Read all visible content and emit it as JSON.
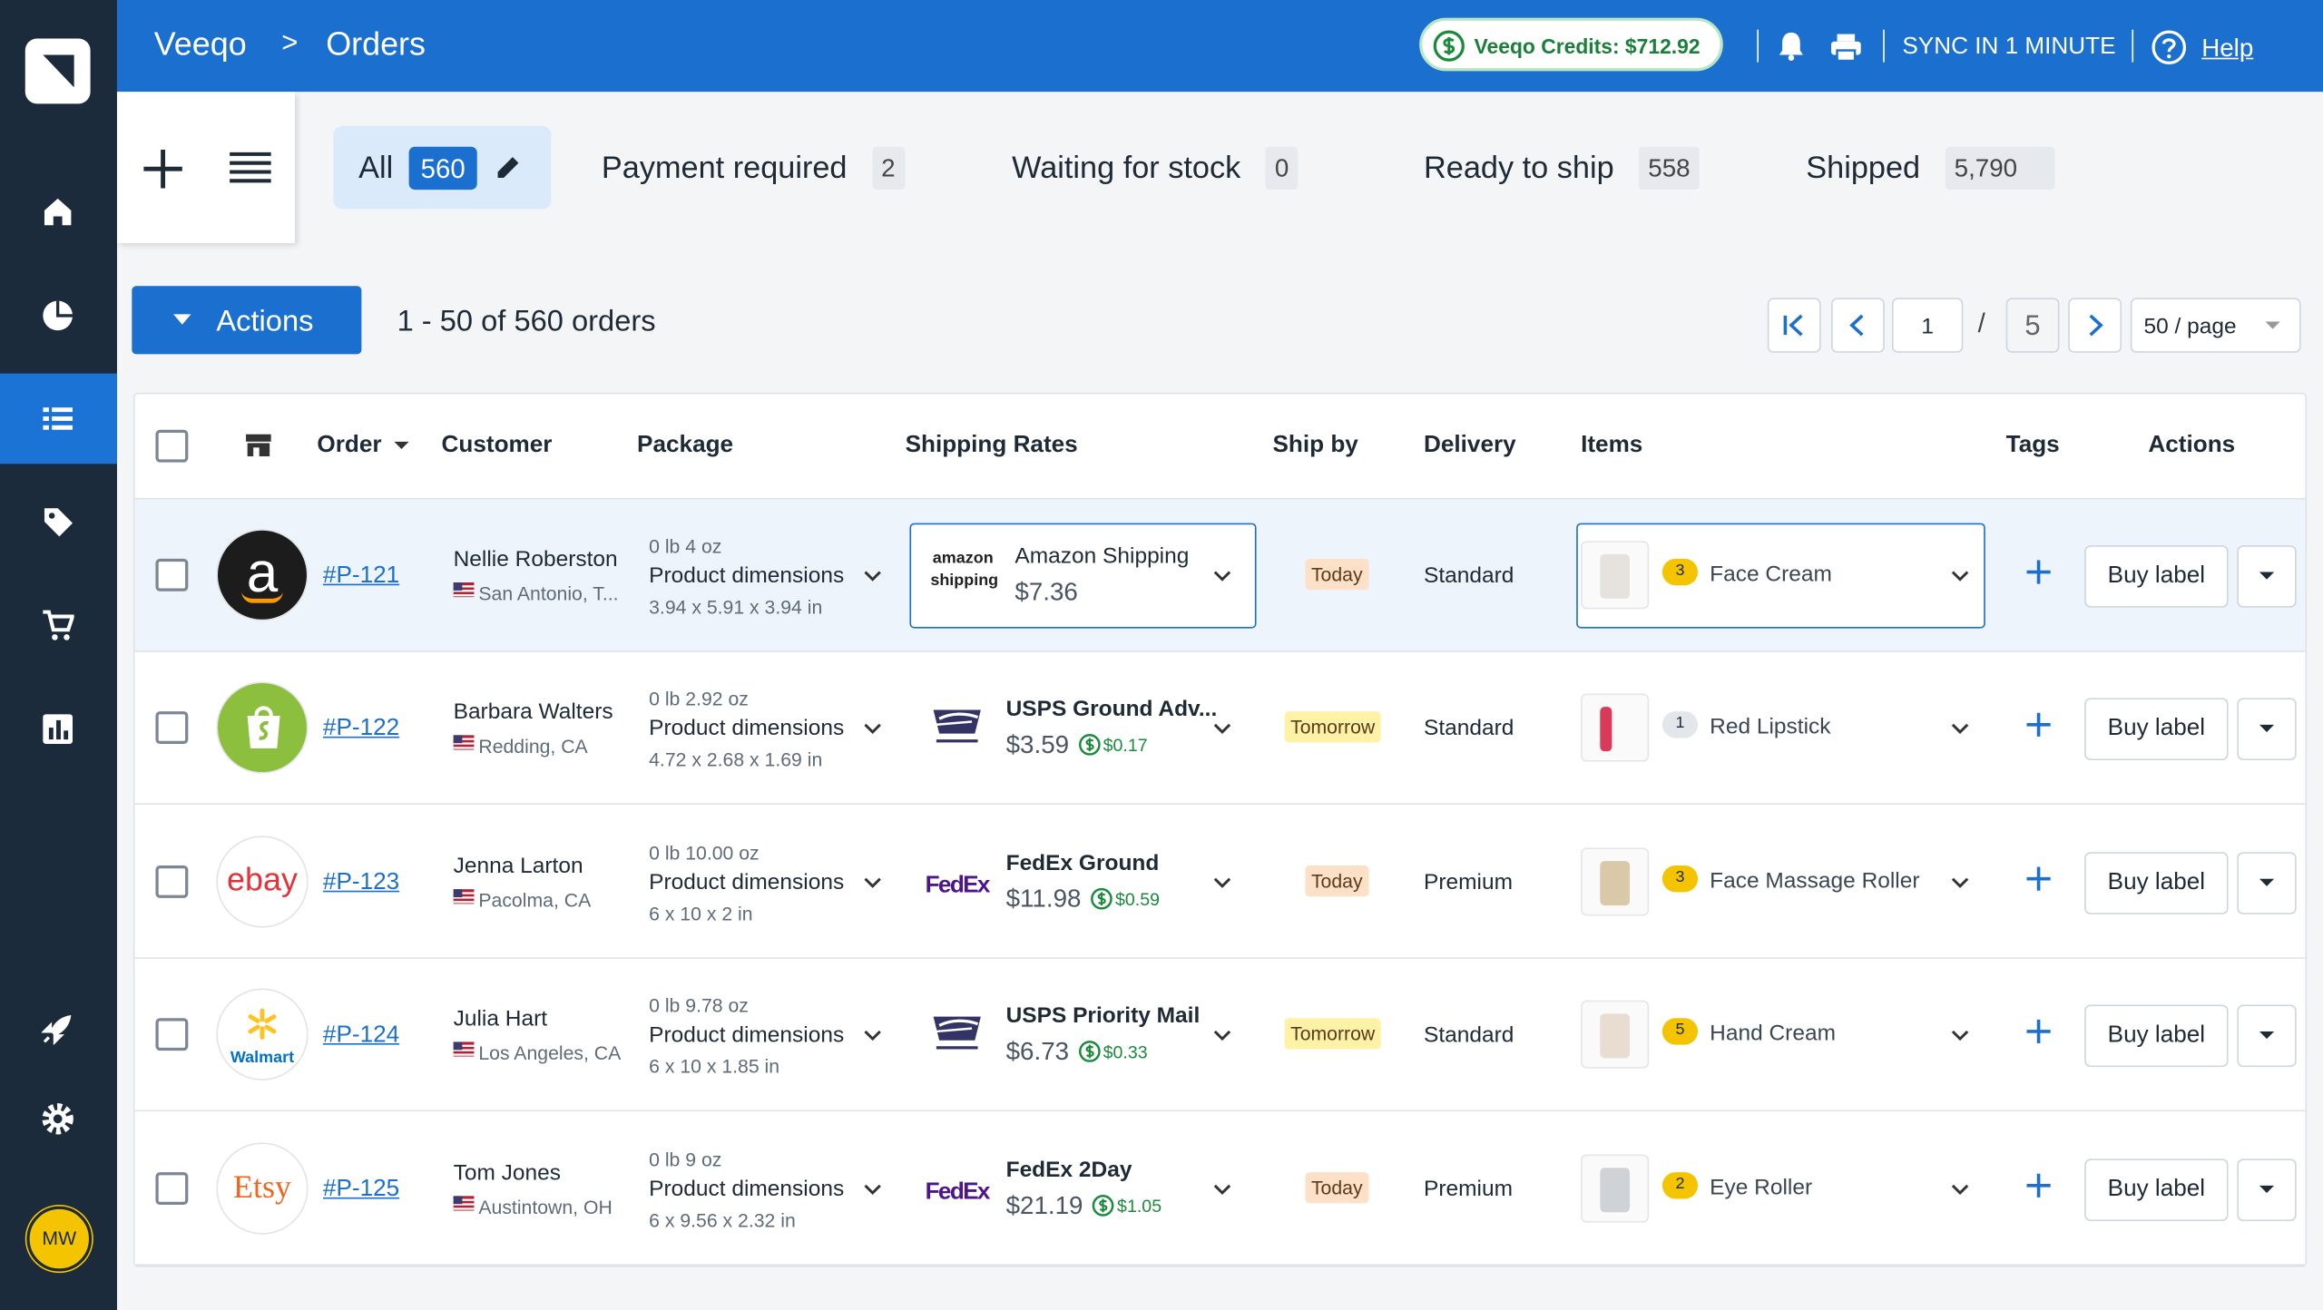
{
  "header": {
    "brand": "Veeqo",
    "separator": ">",
    "page": "Orders",
    "credits": "Veeqo Credits: $712.92",
    "sync": "SYNC IN 1 MINUTE",
    "help": "Help"
  },
  "sidebar": {
    "avatar": "MW"
  },
  "tabs": [
    {
      "label": "All",
      "count": "560"
    },
    {
      "label": "Payment required",
      "count": "2"
    },
    {
      "label": "Waiting for stock",
      "count": "0"
    },
    {
      "label": "Ready to ship",
      "count": "558"
    },
    {
      "label": "Shipped",
      "count": "5,790"
    }
  ],
  "toolbar": {
    "actions": "Actions",
    "summary": "1 - 50 of 560 orders",
    "page": "1",
    "page_separator": "/",
    "pages": "5",
    "per_page": "50 / page"
  },
  "table": {
    "columns": [
      "Order",
      "Customer",
      "Package",
      "Shipping Rates",
      "Ship by",
      "Delivery",
      "Items",
      "Tags",
      "Actions"
    ],
    "rows": [
      {
        "selected": true,
        "channel_logo": "a",
        "channel_bg": "#1c1c1c",
        "channel_fg": "#ffffff",
        "order": "#P-121",
        "customer": "Nellie Roberston",
        "location": "San Antonio, T...",
        "weight": "0 lb 4 oz",
        "package": "Product dimensions",
        "dimensions": "3.94 x 5.91 x 3.94 in",
        "carrier_logo": "amazon shipping",
        "carrier_color": "#222222",
        "service": "Amazon Shipping",
        "rate": "$7.36",
        "ship_by": "Today",
        "ship_by_color": "#fde0c8",
        "delivery": "Standard",
        "quantity": "3",
        "quantity_color": "#f5c400",
        "item": "Face Cream",
        "button": "Buy label"
      },
      {
        "selected": false,
        "channel_bg": "#8dbf3f",
        "channel_fg": "#ffffff",
        "order": "#P-122",
        "customer": "Barbara Walters",
        "location": "Redding, CA",
        "weight": "0 lb 2.92 oz",
        "package": "Product dimensions",
        "dimensions": "4.72 x 2.68 x 1.69 in",
        "service": "USPS Ground Adv...",
        "rate": "$3.59",
        "credit": "$0.17",
        "ship_by": "Tomorrow",
        "ship_by_color": "#fff1a6",
        "delivery": "Standard",
        "quantity": "1",
        "quantity_color": "#e3e6ea",
        "item": "Red Lipstick",
        "button": "Buy label"
      },
      {
        "selected": false,
        "channel_logo": "ebay",
        "channel_bg": "#ffffff",
        "channel_fg": "#e53238",
        "order": "#P-123",
        "customer": "Jenna Larton",
        "location": "Pacolma, CA",
        "weight": "0 lb 10.00 oz",
        "package": "Product dimensions",
        "dimensions": "6 x 10 x 2 in",
        "carrier_logo": "FedEx",
        "carrier_color": "#4d148c",
        "service": "FedEx Ground",
        "rate": "$11.98",
        "credit": "$0.59",
        "ship_by": "Today",
        "ship_by_color": "#fde0c8",
        "delivery": "Premium",
        "quantity": "3",
        "quantity_color": "#f5c400",
        "item": "Face Massage Roller",
        "button": "Buy label"
      },
      {
        "selected": false,
        "channel_logo": "Walmart",
        "channel_bg": "#ffffff",
        "channel_fg": "#0071ce",
        "order": "#P-124",
        "customer": "Julia Hart",
        "location": "Los Angeles, CA",
        "weight": "0 lb 9.78 oz",
        "package": "Product dimensions",
        "dimensions": "6 x 10 x 1.85 in",
        "service": "USPS Priority Mail",
        "rate": "$6.73",
        "credit": "$0.33",
        "ship_by": "Tomorrow",
        "ship_by_color": "#fff1a6",
        "delivery": "Standard",
        "quantity": "5",
        "quantity_color": "#f5c400",
        "item": "Hand Cream",
        "button": "Buy label"
      },
      {
        "selected": false,
        "channel_logo": "Etsy",
        "channel_bg": "#ffffff",
        "channel_fg": "#f1641e",
        "order": "#P-125",
        "customer": "Tom Jones",
        "location": "Austintown, OH",
        "weight": "0 lb 9 oz",
        "package": "Product dimensions",
        "dimensions": "6 x 9.56 x 2.32 in",
        "carrier_logo": "FedEx",
        "carrier_color": "#4d148c",
        "service": "FedEx 2Day",
        "rate": "$21.19",
        "credit": "$1.05",
        "ship_by": "Today",
        "ship_by_color": "#fde0c8",
        "delivery": "Premium",
        "quantity": "2",
        "quantity_color": "#f5c400",
        "item": "Eye Roller",
        "button": "Buy label"
      }
    ]
  }
}
